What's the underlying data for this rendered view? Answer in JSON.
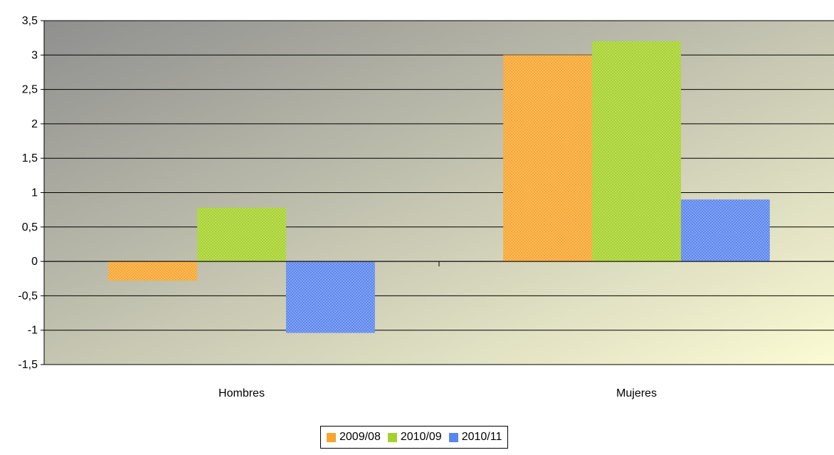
{
  "chart_data": {
    "type": "bar",
    "title": "",
    "xlabel": "",
    "ylabel": "",
    "categories": [
      "Hombres",
      "Mujeres"
    ],
    "series": [
      {
        "name": "2009/08",
        "values": [
          -0.28,
          3.0
        ],
        "color": "#f7a52e"
      },
      {
        "name": "2010/09",
        "values": [
          0.78,
          3.2
        ],
        "color": "#a6d12b"
      },
      {
        "name": "2010/11",
        "values": [
          -1.04,
          0.9
        ],
        "color": "#5b86ee"
      }
    ],
    "ylim": [
      -1.5,
      3.5
    ],
    "yticks": [
      "3,5",
      "3",
      "2,5",
      "2",
      "1,5",
      "1",
      "0,5",
      "0",
      "-0,5",
      "-1",
      "-1,5"
    ],
    "ytick_values": [
      3.5,
      3,
      2.5,
      2,
      1.5,
      1,
      0.5,
      0,
      -0.5,
      -1,
      -1.5
    ],
    "grid": true,
    "legend_position": "bottom-center",
    "background_gradient": [
      "#8f8f8f",
      "#fbfbd4"
    ]
  }
}
